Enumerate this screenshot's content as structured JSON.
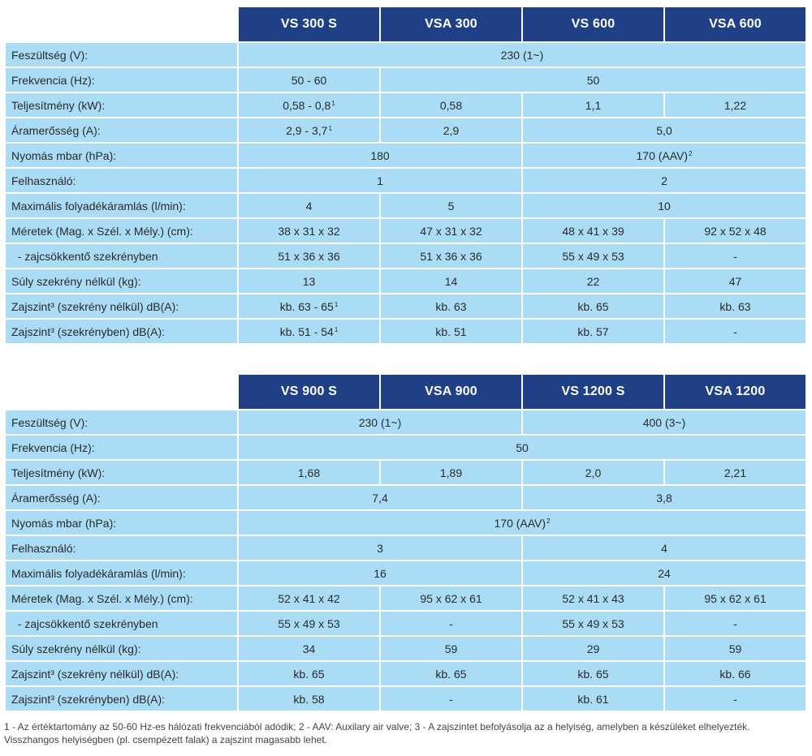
{
  "table1": {
    "models": [
      "VS 300 S",
      "VSA 300",
      "VS 600",
      "VSA 600"
    ],
    "rows": [
      {
        "label": "Feszültség (V):",
        "cells": [
          {
            "v": "230 (1~)",
            "span": 4
          }
        ]
      },
      {
        "label": "Frekvencia (Hz):",
        "cells": [
          {
            "v": "50 - 60",
            "span": 1
          },
          {
            "v": "50",
            "span": 3
          }
        ]
      },
      {
        "label": "Teljesítmény (kW):",
        "cells": [
          {
            "v": "0,58 - 0,8",
            "sup": "1",
            "span": 1
          },
          {
            "v": "0,58",
            "span": 1
          },
          {
            "v": "1,1",
            "span": 1
          },
          {
            "v": "1,22",
            "span": 1
          }
        ]
      },
      {
        "label": "Áramerősség (A):",
        "cells": [
          {
            "v": "2,9 - 3,7",
            "sup": "1",
            "span": 1
          },
          {
            "v": "2,9",
            "span": 1
          },
          {
            "v": "5,0",
            "span": 2
          }
        ]
      },
      {
        "label": "Nyomás mbar (hPa):",
        "cells": [
          {
            "v": "180",
            "span": 2
          },
          {
            "v": "170 (AAV)",
            "sup": "2",
            "span": 2
          }
        ]
      },
      {
        "label": "Felhasználó:",
        "cells": [
          {
            "v": "1",
            "span": 2
          },
          {
            "v": "2",
            "span": 2
          }
        ]
      },
      {
        "label": "Maximális folyadékáramlás (l/min):",
        "cells": [
          {
            "v": "4",
            "span": 1
          },
          {
            "v": "5",
            "span": 1
          },
          {
            "v": "10",
            "span": 2
          }
        ]
      },
      {
        "label": "Méretek (Mag. x Szél. x Mély.) (cm):",
        "cells": [
          {
            "v": "38 x 31 x 32",
            "span": 1
          },
          {
            "v": "47 x 31 x 32",
            "span": 1
          },
          {
            "v": "48 x 41 x 39",
            "span": 1
          },
          {
            "v": "92 x 52 x 48",
            "span": 1
          }
        ]
      },
      {
        "label": "  - zajcsökkentő szekrényben",
        "cells": [
          {
            "v": "51 x 36 x 36",
            "span": 1
          },
          {
            "v": "51 x 36 x 36",
            "span": 1
          },
          {
            "v": "55 x 49 x 53",
            "span": 1
          },
          {
            "v": "-",
            "span": 1
          }
        ]
      },
      {
        "label": "Súly szekrény nélkül (kg):",
        "cells": [
          {
            "v": "13",
            "span": 1
          },
          {
            "v": "14",
            "span": 1
          },
          {
            "v": "22",
            "span": 1
          },
          {
            "v": "47",
            "span": 1
          }
        ]
      },
      {
        "label": "Zajszint³ (szekrény nélkül) dB(A):",
        "cells": [
          {
            "v": "kb. 63 - 65",
            "sup": "1",
            "span": 1
          },
          {
            "v": "kb. 63",
            "span": 1
          },
          {
            "v": "kb. 65",
            "span": 1
          },
          {
            "v": "kb. 63",
            "span": 1
          }
        ]
      },
      {
        "label": "Zajszint³ (szekrényben) dB(A):",
        "cells": [
          {
            "v": "kb. 51 - 54",
            "sup": "1",
            "span": 1
          },
          {
            "v": "kb. 51",
            "span": 1
          },
          {
            "v": "kb. 57",
            "span": 1
          },
          {
            "v": "-",
            "span": 1
          }
        ]
      }
    ]
  },
  "table2": {
    "models": [
      "VS 900 S",
      "VSA 900",
      "VS 1200 S",
      "VSA 1200"
    ],
    "rows": [
      {
        "label": "Feszültség (V):",
        "cells": [
          {
            "v": "230 (1~)",
            "span": 2
          },
          {
            "v": "400 (3~)",
            "span": 2
          }
        ]
      },
      {
        "label": "Frekvencia (Hz):",
        "cells": [
          {
            "v": "50",
            "span": 4
          }
        ]
      },
      {
        "label": "Teljesítmény (kW):",
        "cells": [
          {
            "v": "1,68",
            "span": 1
          },
          {
            "v": "1,89",
            "span": 1
          },
          {
            "v": "2,0",
            "span": 1
          },
          {
            "v": "2,21",
            "span": 1
          }
        ]
      },
      {
        "label": "Áramerősség (A):",
        "cells": [
          {
            "v": "7,4",
            "span": 2
          },
          {
            "v": "3,8",
            "span": 2
          }
        ]
      },
      {
        "label": "Nyomás mbar (hPa):",
        "cells": [
          {
            "v": "170 (AAV)",
            "sup": "2",
            "span": 4
          }
        ]
      },
      {
        "label": "Felhasználó:",
        "cells": [
          {
            "v": "3",
            "span": 2
          },
          {
            "v": "4",
            "span": 2
          }
        ]
      },
      {
        "label": "Maximális folyadékáramlás (l/min):",
        "cells": [
          {
            "v": "16",
            "span": 2
          },
          {
            "v": "24",
            "span": 2
          }
        ]
      },
      {
        "label": "Méretek (Mag. x Szél. x Mély.) (cm):",
        "cells": [
          {
            "v": "52 x 41 x 42",
            "span": 1
          },
          {
            "v": "95 x 62 x 61",
            "span": 1
          },
          {
            "v": "52 x 41 x 43",
            "span": 1
          },
          {
            "v": "95 x 62 x 61",
            "span": 1
          }
        ]
      },
      {
        "label": "  - zajcsökkentő szekrényben",
        "cells": [
          {
            "v": "55 x 49 x 53",
            "span": 1
          },
          {
            "v": "-",
            "span": 1
          },
          {
            "v": "55 x 49 x 53",
            "span": 1
          },
          {
            "v": "-",
            "span": 1
          }
        ]
      },
      {
        "label": "Súly szekrény nélkül (kg):",
        "cells": [
          {
            "v": "34",
            "span": 1
          },
          {
            "v": "59",
            "span": 1
          },
          {
            "v": "29",
            "span": 1
          },
          {
            "v": "59",
            "span": 1
          }
        ]
      },
      {
        "label": "Zajszint³ (szekrény nélkül) dB(A):",
        "cells": [
          {
            "v": "kb. 65",
            "span": 1
          },
          {
            "v": "kb. 65",
            "span": 1
          },
          {
            "v": "kb. 65",
            "span": 1
          },
          {
            "v": "kb. 66",
            "span": 1
          }
        ]
      },
      {
        "label": "Zajszint³ (szekrényben) dB(A):",
        "cells": [
          {
            "v": "kb. 58",
            "span": 1
          },
          {
            "v": "-",
            "span": 1
          },
          {
            "v": "kb. 61",
            "span": 1
          },
          {
            "v": "-",
            "span": 1
          }
        ]
      }
    ]
  },
  "footnote": {
    "line1": "1 - Az értéktartomány az 50-60 Hz-es hálózati frekvenciából adódik; 2 - AAV: Auxilary air valve; 3 - A zajszintet befolyásolja az a helyiség, amelyben a készüléket elhelyezték.",
    "line2": "Visszhangos helyiségben (pl. csempézett falak) a zajszint magasabb lehet."
  },
  "colors": {
    "header_bg": "#1f3f87",
    "cell_bg": "#aadcf5"
  }
}
